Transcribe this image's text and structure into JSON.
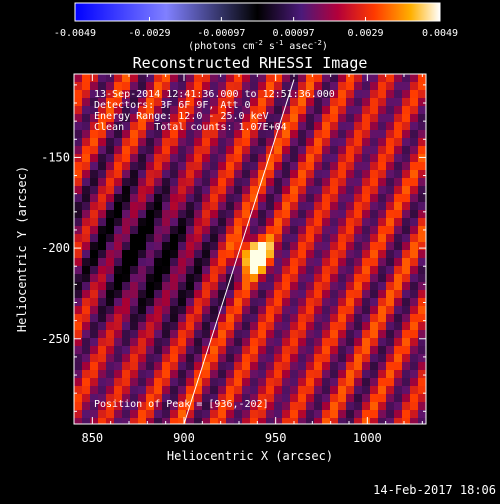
{
  "colorbar": {
    "ticks": [
      "-0.0049",
      "-0.0029",
      "-0.00097",
      "0.00097",
      "0.0029",
      "0.0049"
    ],
    "tick_values": [
      -0.0049,
      -0.0029,
      -0.00097,
      0.00097,
      0.0029,
      0.0049
    ],
    "range": [
      -0.0049,
      0.0049
    ],
    "units_prefix": "(photons cm",
    "units_sup1": "-2",
    "units_mid": " s",
    "units_sup2": "-1",
    "units_mid2": " asec",
    "units_sup3": "-2",
    "units_suffix": ")"
  },
  "footer": {
    "timestamp": "14-Feb-2017 18:06"
  },
  "chart_data": {
    "type": "heatmap",
    "title": "Reconstructed RHESSI Image",
    "xlabel": "Heliocentric X (arcsec)",
    "ylabel": "Heliocentric Y (arcsec)",
    "xlim": [
      840,
      1032
    ],
    "ylim": [
      -297,
      -104
    ],
    "x_ticks": [
      850,
      900,
      950,
      1000
    ],
    "x_tick_labels": [
      "850",
      "900",
      "950",
      "1000"
    ],
    "y_ticks": [
      -150,
      -200,
      -250
    ],
    "y_tick_labels": [
      "-150",
      "-200",
      "-250"
    ],
    "info_lines": [
      "13-Sep-2014 12:41:36.000 to 12:51:36.000",
      "Detectors: 3F 6F 9F, Att 0",
      "Energy Range: 12.0 - 25.0 keV",
      "Clean     Total counts: 1.07E+04"
    ],
    "peak_label": "Position of Peak = [936,-202]",
    "peak": {
      "x": 936,
      "y": -202
    },
    "limb_line": [
      [
        900,
        -297
      ],
      [
        960,
        -107
      ]
    ]
  }
}
